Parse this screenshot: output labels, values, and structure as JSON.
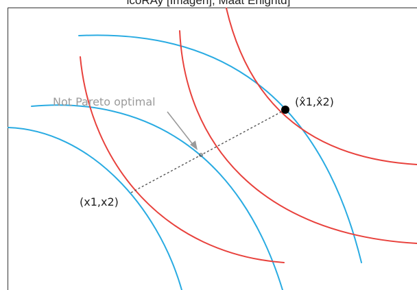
{
  "top_caption": "icoRAy [Imagen], Maat Enightd]",
  "diagram": {
    "annotation": "Not Pareto optimal",
    "point_a_label": "(x1,x2)",
    "point_b_label": "(x̂1,x̂2)",
    "colors": {
      "blue_curves": "#29ABE2",
      "red_curves": "#E8413C",
      "dashed_line": "#555555",
      "annotation": "#9A9A9A",
      "point": "#000000"
    }
  }
}
